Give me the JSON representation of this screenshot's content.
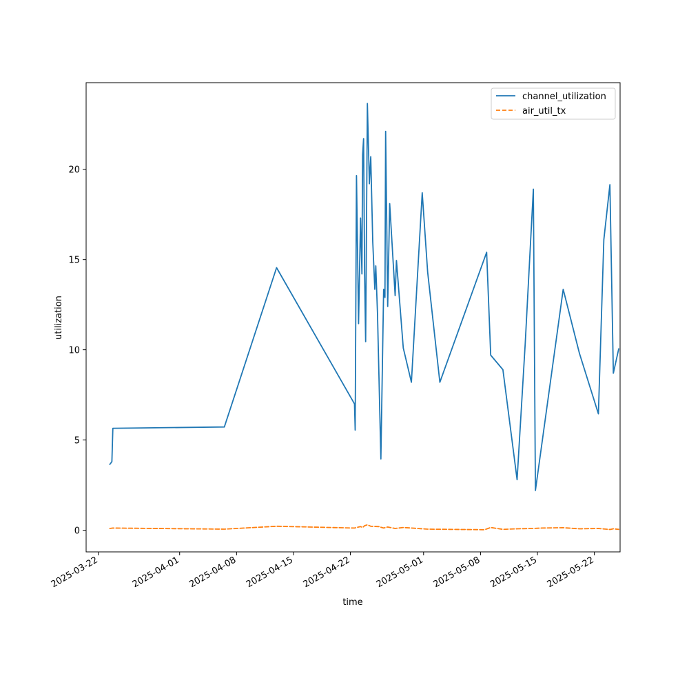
{
  "chart_data": {
    "type": "line",
    "xlabel": "time",
    "ylabel": "utilization",
    "x_ticks": [
      "2025-03-22",
      "2025-04-01",
      "2025-04-08",
      "2025-04-15",
      "2025-04-22",
      "2025-05-01",
      "2025-05-08",
      "2025-05-15",
      "2025-05-22"
    ],
    "y_ticks": [
      0,
      5,
      10,
      15,
      20
    ],
    "xlim": [
      "2025-03-20T12:00",
      "2025-05-25T04:00"
    ],
    "ylim": [
      -1.2,
      24.8
    ],
    "legend_position": "top-right",
    "series": [
      {
        "name": "channel_utilization",
        "color": "#1f77b4",
        "style": "solid",
        "points": [
          [
            "2025-03-23T10:00",
            3.65
          ],
          [
            "2025-03-23T16:00",
            3.8
          ],
          [
            "2025-03-23T19:00",
            5.65
          ],
          [
            "2025-04-06T12:00",
            5.72
          ],
          [
            "2025-04-12T22:00",
            14.55
          ],
          [
            "2025-04-22T12:00",
            7.0
          ],
          [
            "2025-04-22T14:00",
            5.55
          ],
          [
            "2025-04-22T18:00",
            19.65
          ],
          [
            "2025-04-23T00:00",
            11.45
          ],
          [
            "2025-04-23T06:00",
            17.3
          ],
          [
            "2025-04-23T10:00",
            14.2
          ],
          [
            "2025-04-23T12:00",
            20.8
          ],
          [
            "2025-04-23T15:00",
            21.7
          ],
          [
            "2025-04-23T18:00",
            14.2
          ],
          [
            "2025-04-23T21:00",
            10.45
          ],
          [
            "2025-04-24T02:00",
            23.65
          ],
          [
            "2025-04-24T08:00",
            19.2
          ],
          [
            "2025-04-24T12:00",
            20.7
          ],
          [
            "2025-04-24T18:00",
            16.0
          ],
          [
            "2025-04-25T00:00",
            13.35
          ],
          [
            "2025-04-25T03:00",
            14.65
          ],
          [
            "2025-04-25T08:00",
            12.0
          ],
          [
            "2025-04-25T18:00",
            3.95
          ],
          [
            "2025-04-26T02:00",
            13.35
          ],
          [
            "2025-04-26T06:00",
            12.9
          ],
          [
            "2025-04-26T08:00",
            22.1
          ],
          [
            "2025-04-26T14:00",
            12.4
          ],
          [
            "2025-04-26T20:00",
            18.1
          ],
          [
            "2025-04-27T12:00",
            13.0
          ],
          [
            "2025-04-27T16:00",
            14.95
          ],
          [
            "2025-04-28T12:00",
            10.1
          ],
          [
            "2025-04-29T12:00",
            8.2
          ],
          [
            "2025-04-30T20:00",
            18.7
          ],
          [
            "2025-05-01T12:00",
            14.3
          ],
          [
            "2025-05-03T00:00",
            8.2
          ],
          [
            "2025-05-08T18:00",
            15.4
          ],
          [
            "2025-05-09T06:00",
            9.7
          ],
          [
            "2025-05-10T18:00",
            8.9
          ],
          [
            "2025-05-12T12:00",
            2.8
          ],
          [
            "2025-05-13T12:00",
            10.35
          ],
          [
            "2025-05-14T12:00",
            18.9
          ],
          [
            "2025-05-14T18:00",
            2.2
          ],
          [
            "2025-05-18T04:00",
            13.35
          ],
          [
            "2025-05-20T04:00",
            9.8
          ],
          [
            "2025-05-22T12:00",
            6.45
          ],
          [
            "2025-05-23T04:00",
            16.1
          ],
          [
            "2025-05-23T22:00",
            19.15
          ],
          [
            "2025-05-24T08:00",
            8.7
          ],
          [
            "2025-05-25T00:00",
            10.05
          ]
        ]
      },
      {
        "name": "air_util_tx",
        "color": "#ff7f0e",
        "style": "dashed",
        "points": [
          [
            "2025-03-23T10:00",
            0.1
          ],
          [
            "2025-03-23T19:00",
            0.12
          ],
          [
            "2025-04-06T12:00",
            0.06
          ],
          [
            "2025-04-12T22:00",
            0.22
          ],
          [
            "2025-04-22T12:00",
            0.12
          ],
          [
            "2025-04-23T06:00",
            0.2
          ],
          [
            "2025-04-23T12:00",
            0.15
          ],
          [
            "2025-04-23T18:00",
            0.25
          ],
          [
            "2025-04-24T02:00",
            0.3
          ],
          [
            "2025-04-24T12:00",
            0.22
          ],
          [
            "2025-04-25T12:00",
            0.2
          ],
          [
            "2025-04-26T02:00",
            0.12
          ],
          [
            "2025-04-26T14:00",
            0.18
          ],
          [
            "2025-04-27T12:00",
            0.1
          ],
          [
            "2025-04-28T12:00",
            0.15
          ],
          [
            "2025-05-01T12:00",
            0.06
          ],
          [
            "2025-05-08T12:00",
            0.03
          ],
          [
            "2025-05-09T06:00",
            0.15
          ],
          [
            "2025-05-10T18:00",
            0.05
          ],
          [
            "2025-05-12T12:00",
            0.08
          ],
          [
            "2025-05-14T12:00",
            0.1
          ],
          [
            "2025-05-15T12:00",
            0.12
          ],
          [
            "2025-05-18T04:00",
            0.14
          ],
          [
            "2025-05-20T04:00",
            0.08
          ],
          [
            "2025-05-22T12:00",
            0.1
          ],
          [
            "2025-05-23T22:00",
            0.04
          ],
          [
            "2025-05-24T08:00",
            0.08
          ],
          [
            "2025-05-25T00:00",
            0.05
          ]
        ]
      }
    ]
  }
}
